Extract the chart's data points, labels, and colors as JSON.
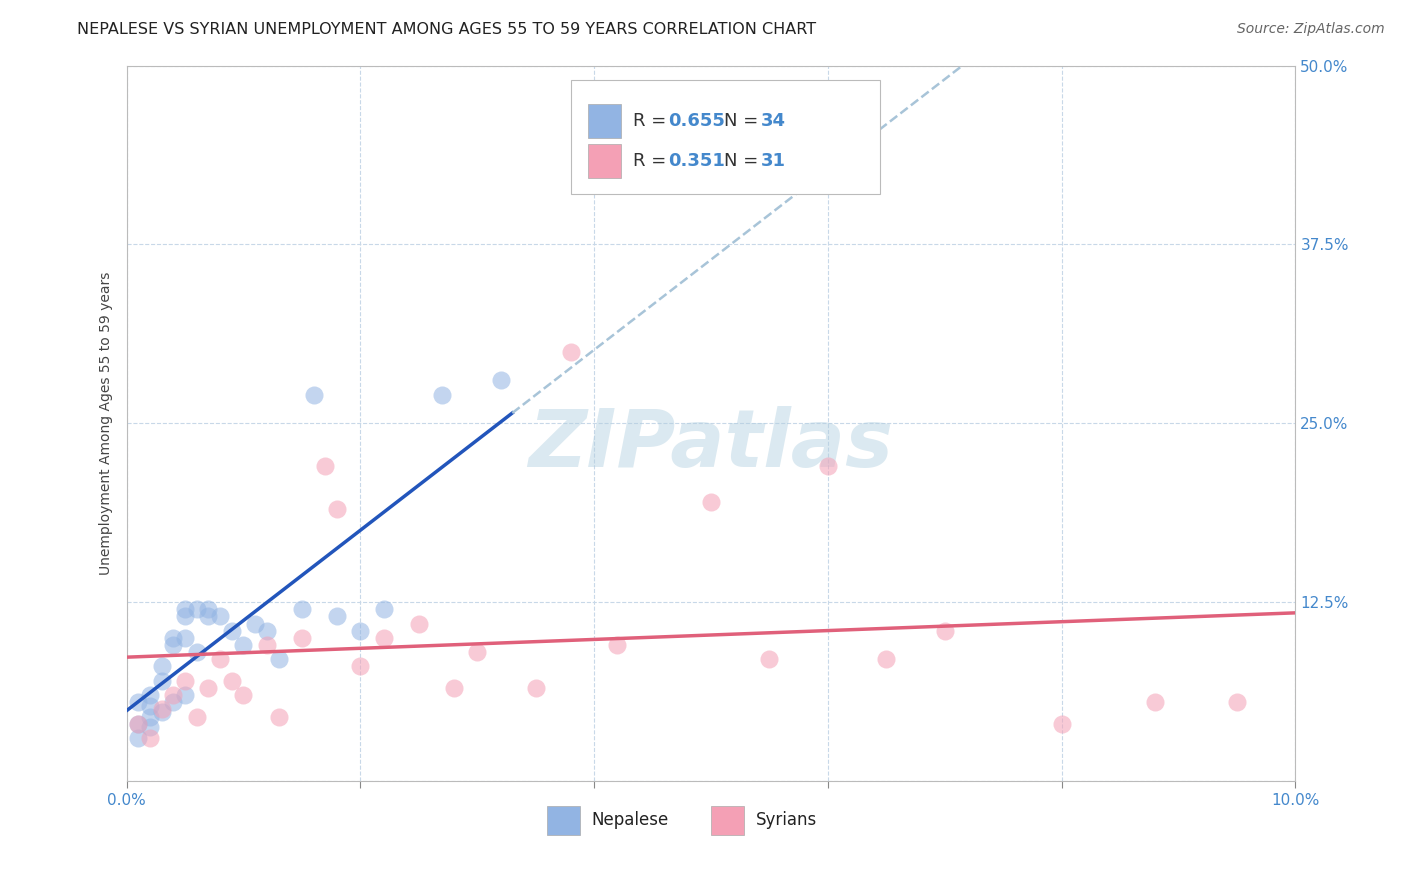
{
  "title": "NEPALESE VS SYRIAN UNEMPLOYMENT AMONG AGES 55 TO 59 YEARS CORRELATION CHART",
  "source": "Source: ZipAtlas.com",
  "ylabel_label": "Unemployment Among Ages 55 to 59 years",
  "xlim": [
    0.0,
    0.1
  ],
  "ylim": [
    0.0,
    0.5
  ],
  "xticks": [
    0.0,
    0.02,
    0.04,
    0.06,
    0.08,
    0.1
  ],
  "yticks": [
    0.0,
    0.125,
    0.25,
    0.375,
    0.5
  ],
  "xtick_labels": [
    "0.0%",
    "",
    "",
    "",
    "",
    "10.0%"
  ],
  "ytick_labels": [
    "",
    "12.5%",
    "25.0%",
    "37.5%",
    "50.0%"
  ],
  "legend_bottom_label1": "Nepalese",
  "legend_bottom_label2": "Syrians",
  "nepalese_color": "#92b4e3",
  "syrian_color": "#f4a0b5",
  "nepalese_line_color": "#2255bb",
  "syrian_line_color": "#e0607a",
  "dashed_line_color": "#a8c4d8",
  "background_color": "#ffffff",
  "grid_color": "#c8d8e8",
  "watermark": "ZIPatlas",
  "nepalese_R": 0.655,
  "nepalese_N": 34,
  "syrian_R": 0.351,
  "syrian_N": 31,
  "nepalese_x": [
    0.001,
    0.001,
    0.001,
    0.002,
    0.002,
    0.002,
    0.002,
    0.003,
    0.003,
    0.003,
    0.004,
    0.004,
    0.004,
    0.005,
    0.005,
    0.005,
    0.005,
    0.006,
    0.006,
    0.007,
    0.007,
    0.008,
    0.009,
    0.01,
    0.011,
    0.012,
    0.013,
    0.015,
    0.016,
    0.018,
    0.02,
    0.022,
    0.027,
    0.032
  ],
  "nepalese_y": [
    0.03,
    0.04,
    0.055,
    0.038,
    0.045,
    0.052,
    0.06,
    0.048,
    0.07,
    0.08,
    0.055,
    0.095,
    0.1,
    0.06,
    0.1,
    0.115,
    0.12,
    0.09,
    0.12,
    0.115,
    0.12,
    0.115,
    0.105,
    0.095,
    0.11,
    0.105,
    0.085,
    0.12,
    0.27,
    0.115,
    0.105,
    0.12,
    0.27,
    0.28
  ],
  "syrian_x": [
    0.001,
    0.002,
    0.003,
    0.004,
    0.005,
    0.006,
    0.007,
    0.008,
    0.009,
    0.01,
    0.012,
    0.013,
    0.015,
    0.017,
    0.018,
    0.02,
    0.022,
    0.025,
    0.028,
    0.03,
    0.035,
    0.038,
    0.042,
    0.05,
    0.055,
    0.06,
    0.065,
    0.07,
    0.08,
    0.088,
    0.095
  ],
  "syrian_y": [
    0.04,
    0.03,
    0.05,
    0.06,
    0.07,
    0.045,
    0.065,
    0.085,
    0.07,
    0.06,
    0.095,
    0.045,
    0.1,
    0.22,
    0.19,
    0.08,
    0.1,
    0.11,
    0.065,
    0.09,
    0.065,
    0.3,
    0.095,
    0.195,
    0.085,
    0.22,
    0.085,
    0.105,
    0.04,
    0.055,
    0.055
  ],
  "title_fontsize": 11.5,
  "axis_label_fontsize": 10,
  "tick_fontsize": 11,
  "legend_fontsize": 13,
  "source_fontsize": 10,
  "marker_size": 13,
  "marker_alpha": 0.55
}
